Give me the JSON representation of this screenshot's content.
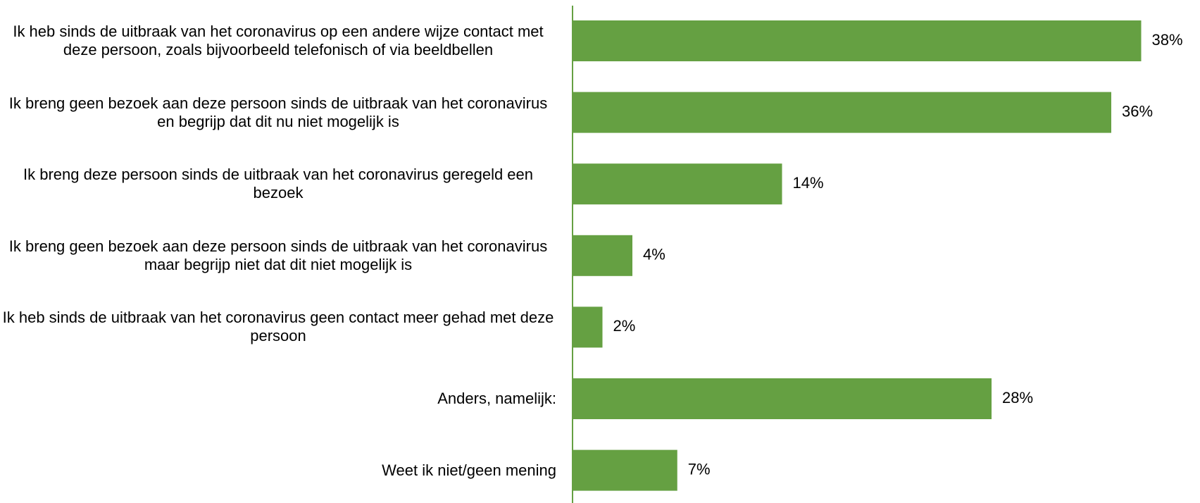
{
  "chart_data": {
    "type": "bar",
    "orientation": "horizontal",
    "categories": [
      "Ik heb sinds de uitbraak van het coronavirus op een andere wijze contact met deze persoon, zoals bijvoorbeeld telefonisch of via beeldbellen",
      "Ik breng geen bezoek aan deze persoon sinds de uitbraak van het coronavirus en begrijp dat dit nu niet mogelijk is",
      "Ik breng deze persoon sinds de uitbraak van het coronavirus geregeld een bezoek",
      "Ik breng geen bezoek aan deze persoon sinds de uitbraak van het coronavirus maar begrijp niet dat dit niet mogelijk is",
      "Ik heb sinds de uitbraak van het coronavirus geen contact meer gehad met deze persoon",
      "Anders, namelijk:",
      "Weet ik niet/geen mening"
    ],
    "values": [
      38,
      36,
      14,
      4,
      2,
      28,
      7
    ],
    "value_labels": [
      "38%",
      "36%",
      "14%",
      "4%",
      "2%",
      "28%",
      "7%"
    ],
    "color": "#65a042"
  }
}
